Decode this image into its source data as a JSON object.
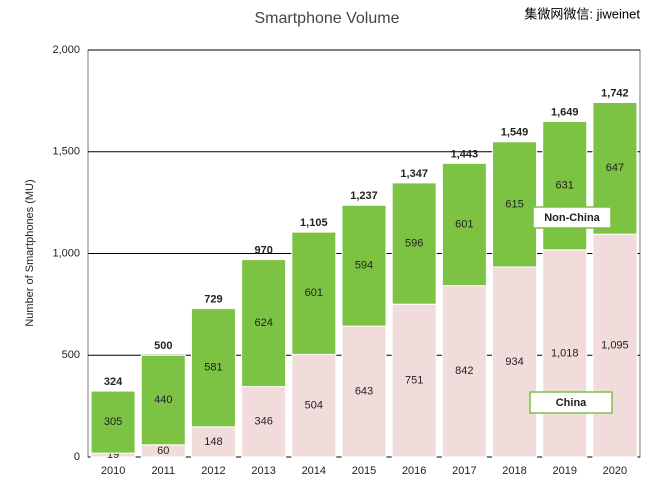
{
  "chart_data": {
    "type": "stacked-bar",
    "title": "Smartphone Volume",
    "watermark": "集微网微信: jiweinet",
    "y_label": "Number of Smartphones (MU)",
    "categories": [
      "2010",
      "2011",
      "2012",
      "2013",
      "2014",
      "2015",
      "2016",
      "2017",
      "2018",
      "2019",
      "2020"
    ],
    "series": [
      {
        "name": "China",
        "color": "#f2dcdb",
        "values": [
          19,
          60,
          148,
          346,
          504,
          643,
          751,
          842,
          934,
          1018,
          1095
        ],
        "value_labels": [
          "19",
          "60",
          "148",
          "346",
          "504",
          "643",
          "751",
          "842",
          "934",
          "1,018",
          "1,095"
        ]
      },
      {
        "name": "Non-China",
        "color": "#7cc243",
        "values": [
          305,
          440,
          581,
          624,
          601,
          594,
          596,
          601,
          615,
          631,
          647
        ]
      }
    ],
    "totals": [
      324,
      500,
      729,
      970,
      1105,
      1237,
      1347,
      1443,
      1549,
      1649,
      1742
    ],
    "total_labels": [
      "324",
      "500",
      "729",
      "970",
      "1,105",
      "1,237",
      "1,347",
      "1,443",
      "1,549",
      "1,649",
      "1,742"
    ],
    "ylim": [
      0,
      2000
    ],
    "yticks": [
      0,
      500,
      {
        "value": 1000,
        "label": "1,000"
      },
      {
        "value": 1500,
        "label": "1,500"
      },
      {
        "value": 2000,
        "label": "2,000"
      }
    ],
    "grid": true
  }
}
